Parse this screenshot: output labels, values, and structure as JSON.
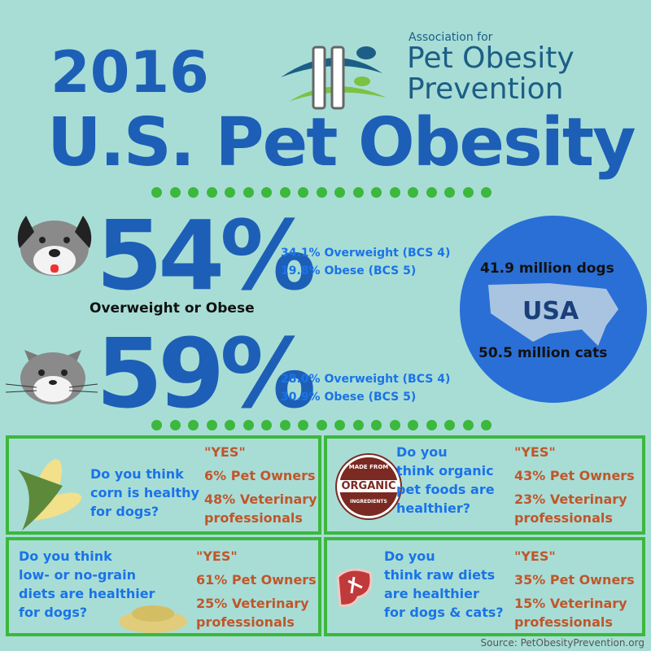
{
  "title": {
    "year": "2016",
    "main": "U.S. Pet Obesity"
  },
  "logo": {
    "line1": "Association for",
    "line2": "Pet Obesity",
    "line3": "Prevention"
  },
  "dogs": {
    "percent": "54%",
    "overweight": "34.1% Overweight (BCS 4)",
    "obese": "19.8% Obese (BCS 5)",
    "label": "Overweight or Obese"
  },
  "cats": {
    "percent": "59%",
    "overweight": "28.0% Overweight (BCS 4)",
    "obese": "30.9% Obese (BCS 5)"
  },
  "usa": {
    "dogs": "41.9 million dogs",
    "label": "USA",
    "cats": "50.5 million cats"
  },
  "questions": [
    {
      "q": [
        "Do you think",
        "corn is healthy",
        "for dogs?"
      ],
      "yes": "\"YES\"",
      "owners": "6% Pet Owners",
      "vets": [
        "48% Veterinary",
        "professionals"
      ]
    },
    {
      "q": [
        "Do you",
        "think organic",
        "pet foods are",
        "healthier?"
      ],
      "yes": "\"YES\"",
      "owners": "43% Pet Owners",
      "vets": [
        "23% Veterinary",
        "professionals"
      ],
      "badge": [
        "MADE FROM",
        "ORGANIC",
        "INGREDIENTS"
      ]
    },
    {
      "q": [
        "Do you think",
        "low- or no-grain",
        "diets are healthier",
        "for dogs?"
      ],
      "yes": "\"YES\"",
      "owners": "61% Pet Owners",
      "vets": [
        "25% Veterinary",
        "professionals"
      ]
    },
    {
      "q": [
        "Do you",
        "think raw diets",
        "are healthier",
        "for dogs & cats?"
      ],
      "yes": "\"YES\"",
      "owners": "35% Pet Owners",
      "vets": [
        "15% Veterinary",
        "professionals"
      ]
    }
  ],
  "source": "Source: PetObesityPrevention.org",
  "colors": {
    "bg": "#a8ddd6",
    "title": "#1d5fb6",
    "green": "#3cb83c",
    "orange": "#c0562a",
    "blue": "#1a73e8"
  }
}
